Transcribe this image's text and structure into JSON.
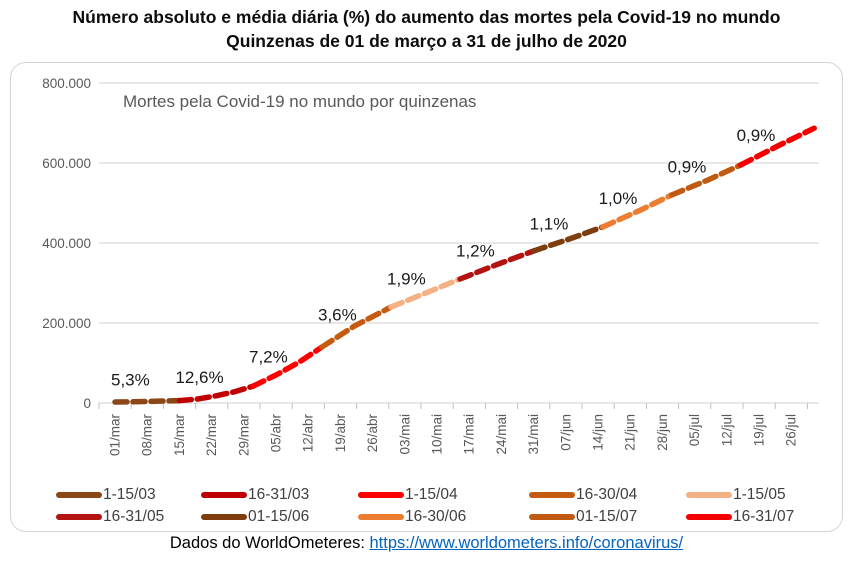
{
  "page": {
    "title_line1": "Número absoluto e média diária (%) do aumento das mortes pela Covid-19 no mundo",
    "title_line2": "Quinzenas de 01 de março a 31 de julho de 2020"
  },
  "footer": {
    "prefix": "Dados do WorldOmeteres: ",
    "link_text": "https://www.worldometers.info/coronavirus/"
  },
  "chart_data": {
    "type": "line",
    "title": "Número absoluto e média diária (%) do aumento das mortes pela Covid-19 no mundo",
    "subtitle": "Quinzenas de 01 de março a 31 de julho de 2020",
    "inner_label": "Mortes pela Covid-19 no mundo por quinzenas",
    "x_unit": "days since 01/mar/2020, one tick per week",
    "x_tick_labels": [
      "01/mar",
      "08/mar",
      "15/mar",
      "22/mar",
      "29/mar",
      "05/abr",
      "12/abr",
      "19/abr",
      "26/abr",
      "03/mai",
      "10/mai",
      "17/mai",
      "24/mai",
      "31/mai",
      "07/jun",
      "14/jun",
      "21/jun",
      "28/jun",
      "05/jul",
      "12/jul",
      "19/jul",
      "26/jul"
    ],
    "y_tick_labels_top_to_bottom": [
      "800.000",
      "600.000",
      "400.000",
      "200.000",
      "0"
    ],
    "ylim": [
      0,
      800000
    ],
    "grid": true,
    "legend_position": "bottom",
    "segments": [
      {
        "name": "1-15/03",
        "color": "#8C4718",
        "pct_label": "5,3%",
        "points": [
          [
            0,
            2500
          ],
          [
            7,
            3800
          ],
          [
            14,
            6000
          ]
        ]
      },
      {
        "name": "16-31/03",
        "color": "#C00000",
        "pct_label": "12,6%",
        "points": [
          [
            14,
            6000
          ],
          [
            18,
            10000
          ],
          [
            22,
            18000
          ],
          [
            26,
            28000
          ],
          [
            30,
            42000
          ]
        ]
      },
      {
        "name": "1-15/04",
        "color": "#FF0000",
        "pct_label": "7,2%",
        "points": [
          [
            30,
            42000
          ],
          [
            35,
            70000
          ],
          [
            40,
            102000
          ],
          [
            45,
            140000
          ]
        ]
      },
      {
        "name": "16-30/04",
        "color": "#C55A11",
        "pct_label": "3,6%",
        "points": [
          [
            45,
            140000
          ],
          [
            52,
            192000
          ],
          [
            60,
            240000
          ]
        ]
      },
      {
        "name": "1-15/05",
        "color": "#F4B183",
        "pct_label": "1,9%",
        "points": [
          [
            60,
            240000
          ],
          [
            68,
            277000
          ],
          [
            75,
            310000
          ]
        ]
      },
      {
        "name": "16-31/05",
        "color": "#B31311",
        "pct_label": "1,2%",
        "points": [
          [
            75,
            310000
          ],
          [
            83,
            346000
          ],
          [
            91,
            380000
          ]
        ]
      },
      {
        "name": "01-15/06",
        "color": "#7E3D0D",
        "pct_label": "1,1%",
        "points": [
          [
            91,
            380000
          ],
          [
            99,
            411000
          ],
          [
            106,
            440000
          ]
        ]
      },
      {
        "name": "16-30/06",
        "color": "#ED7D31",
        "pct_label": "1,0%",
        "points": [
          [
            106,
            440000
          ],
          [
            114,
            481000
          ],
          [
            121,
            520000
          ]
        ]
      },
      {
        "name": "01-15/07",
        "color": "#C05A11",
        "pct_label": "0,9%",
        "points": [
          [
            121,
            520000
          ],
          [
            129,
            558000
          ],
          [
            136,
            595000
          ]
        ]
      },
      {
        "name": "16-31/07",
        "color": "#F40000",
        "pct_label": "0,9%",
        "points": [
          [
            136,
            595000
          ],
          [
            144,
            642000
          ],
          [
            152,
            687000
          ]
        ]
      }
    ],
    "fortnight_end_totals": [
      {
        "date": "15/03",
        "deaths": 6000
      },
      {
        "date": "31/03",
        "deaths": 42000
      },
      {
        "date": "15/04",
        "deaths": 140000
      },
      {
        "date": "30/04",
        "deaths": 240000
      },
      {
        "date": "15/05",
        "deaths": 310000
      },
      {
        "date": "31/05",
        "deaths": 380000
      },
      {
        "date": "15/06",
        "deaths": 440000
      },
      {
        "date": "30/06",
        "deaths": 520000
      },
      {
        "date": "15/07",
        "deaths": 595000
      },
      {
        "date": "31/07",
        "deaths": 687000
      }
    ]
  },
  "colors": {
    "axis_text": "#595959",
    "grid_line": "#D9D9D9",
    "tick_mark": "#BFBFBF",
    "pct_label_text": "#1A1A1A",
    "inner_label_text": "#595959",
    "legend_text": "#404040",
    "link": "#0563C1"
  }
}
